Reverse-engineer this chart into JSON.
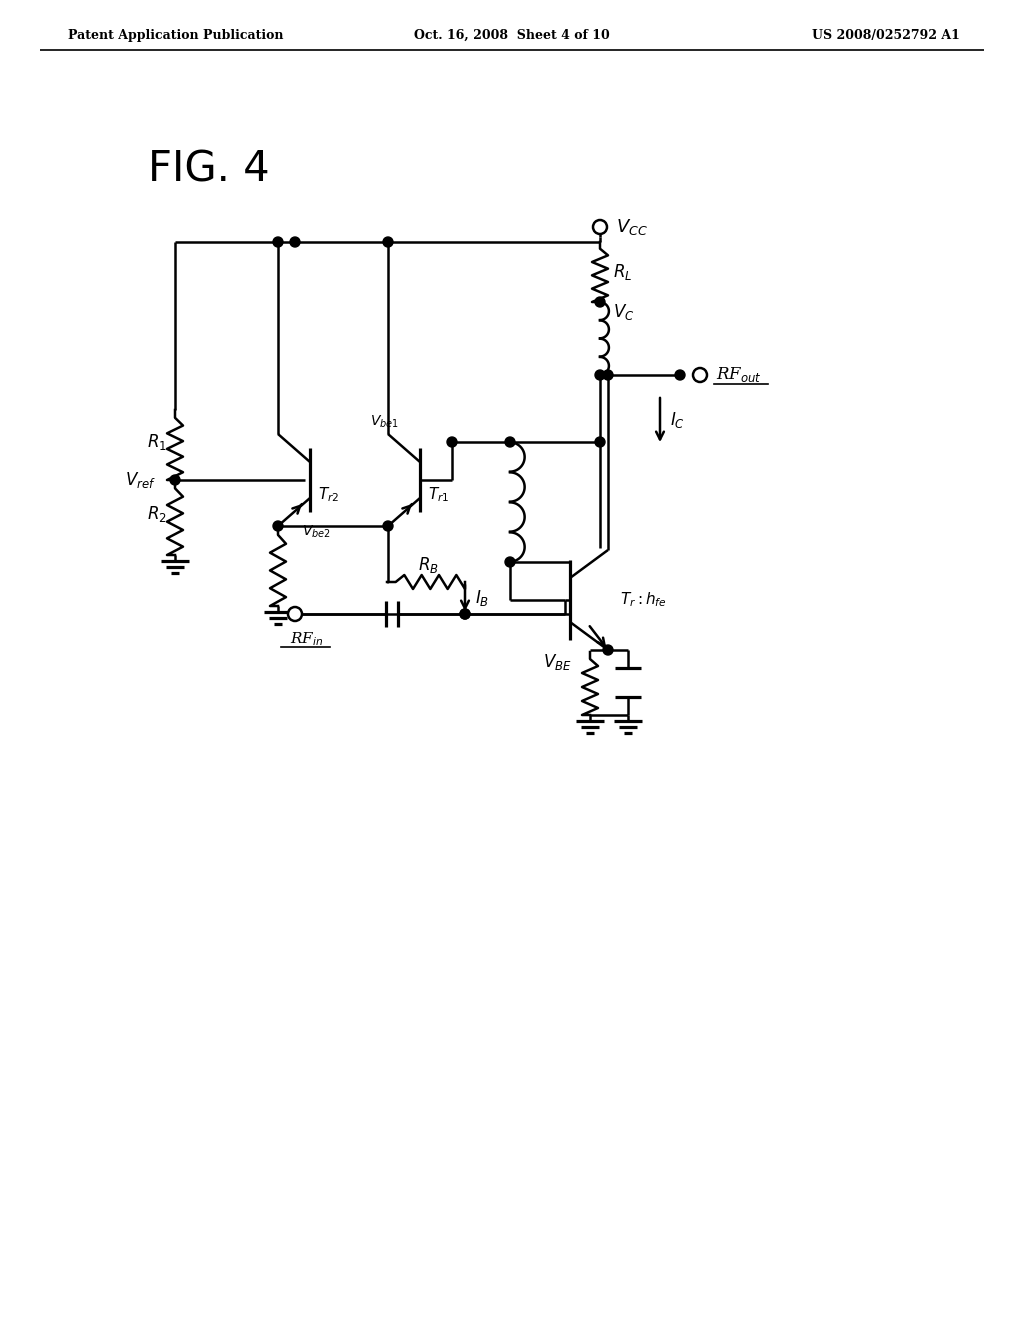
{
  "header_left": "Patent Application Publication",
  "header_center": "Oct. 16, 2008  Sheet 4 of 10",
  "header_right": "US 2008/0252792 A1",
  "bg_color": "#ffffff",
  "fig_label": "FIG. 4"
}
